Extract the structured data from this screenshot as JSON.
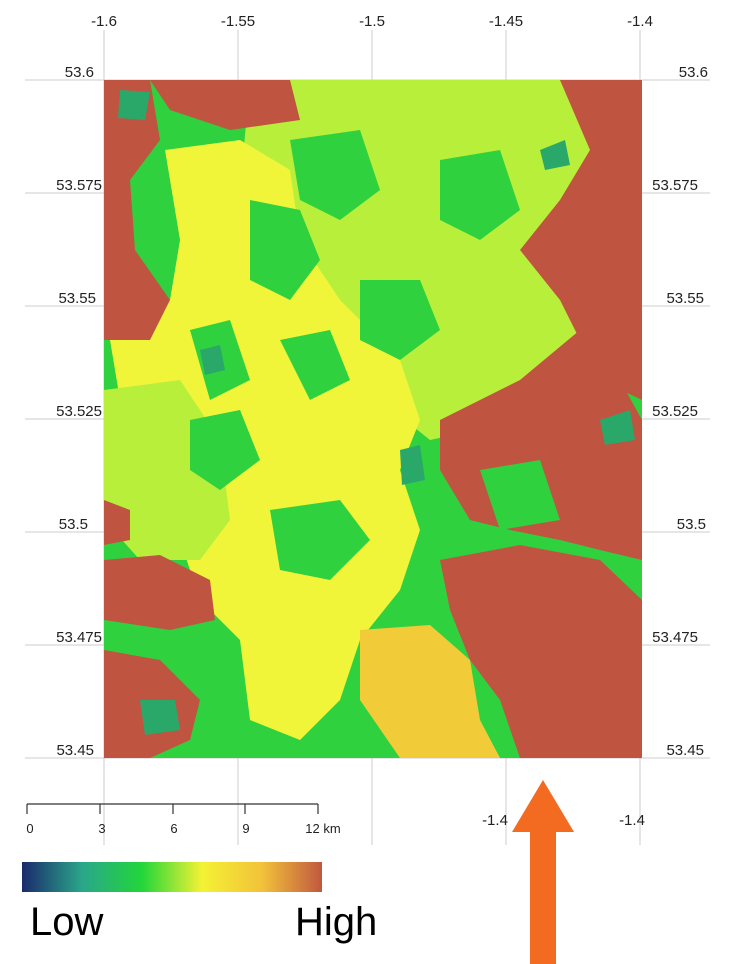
{
  "map": {
    "lon_ticks_top": [
      "-1.6",
      "-1.55",
      "-1.5",
      "-1.45",
      "-1.4"
    ],
    "lon_ticks_bottom": [
      "-1.4",
      "-1.4"
    ],
    "lat_ticks_left": [
      "53.6",
      "53.575",
      "53.55",
      "53.525",
      "53.5",
      "53.475",
      "53.45"
    ],
    "lat_ticks_right": [
      "53.6",
      "53.575",
      "53.55",
      "53.525",
      "53.5",
      "53.475",
      "53.45"
    ],
    "lon_range": [
      -1.6,
      -1.4
    ],
    "lat_range": [
      53.45,
      53.6
    ]
  },
  "scalebar": {
    "labels": [
      "0",
      "3",
      "6",
      "9",
      "12 km"
    ],
    "values": [
      0,
      3,
      6,
      9,
      12
    ]
  },
  "legend": {
    "low_label": "Low",
    "high_label": "High",
    "colors": [
      "#1a2a6c",
      "#2aa68a",
      "#22d63a",
      "#f4f234",
      "#f2c23a",
      "#c0583f"
    ]
  },
  "colors": {
    "high": "#bf5440",
    "green": "#2fd13f",
    "light_green": "#b8ef3a",
    "yellow": "#f1f53a",
    "orange": "#f2cc38",
    "teal": "#2aa86a",
    "arrow": "#f36b21"
  },
  "annotation": {
    "arrow_direction": "up"
  }
}
